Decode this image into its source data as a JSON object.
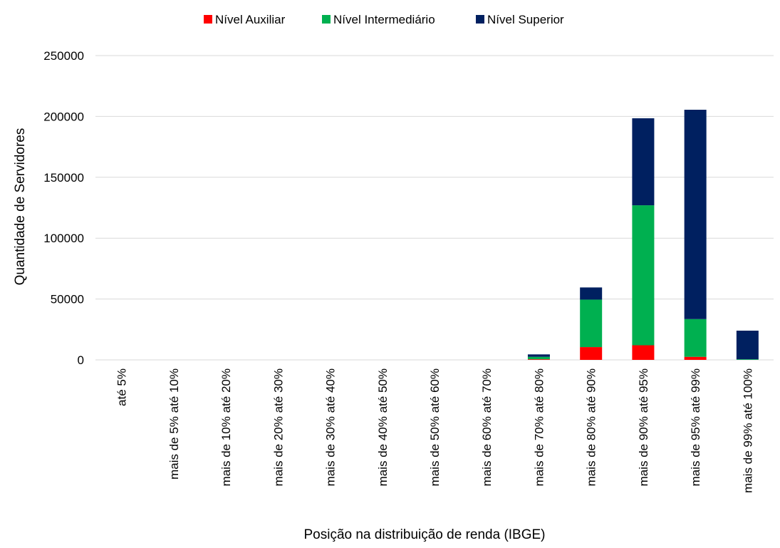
{
  "chart_data": {
    "type": "bar",
    "stacked": true,
    "title": "",
    "xlabel": "Posição na distribuição de renda (IBGE)",
    "ylabel": "Quantidade de Servidores",
    "ylim": [
      0,
      250000
    ],
    "yticks": [
      0,
      50000,
      100000,
      150000,
      200000,
      250000
    ],
    "grid": true,
    "legend_position": "top",
    "categories": [
      "até 5%",
      "mais de 5% até 10%",
      "mais de 10% até 20%",
      "mais de 20% até 30%",
      "mais de 30% até 40%",
      "mais de 40% até 50%",
      "mais de 50% até 60%",
      "mais de 60% até 70%",
      "mais de 70% até 80%",
      "mais de 80% até 90%",
      "mais de 90% até 95%",
      "mais de 95% até 99%",
      "mais de 99% até 100%"
    ],
    "series": [
      {
        "name": "Nível Auxiliar",
        "color": "#ff0000",
        "values": [
          0,
          0,
          0,
          0,
          0,
          0,
          0,
          0,
          500,
          10500,
          12000,
          2500,
          0
        ]
      },
      {
        "name": "Nível Intermediário",
        "color": "#00b050",
        "values": [
          0,
          0,
          0,
          0,
          0,
          0,
          0,
          0,
          2000,
          39000,
          115000,
          31000,
          500
        ]
      },
      {
        "name": "Nível Superior",
        "color": "#002060",
        "values": [
          0,
          0,
          0,
          0,
          0,
          0,
          0,
          0,
          2000,
          10000,
          71500,
          172000,
          23500
        ]
      }
    ]
  }
}
